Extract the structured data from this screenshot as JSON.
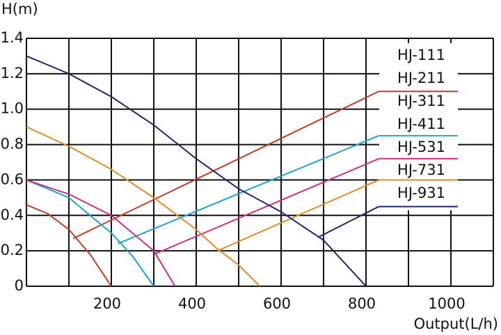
{
  "chart_data": {
    "type": "line",
    "y_label": "H(m)",
    "x_label": "Output(L/h)",
    "xlim": [
      0,
      1100
    ],
    "ylim": [
      0,
      1.4
    ],
    "xticks": [
      200,
      400,
      600,
      800,
      1000
    ],
    "xminor": [
      100,
      300,
      500,
      700,
      900
    ],
    "yticks": [
      0,
      0.2,
      0.4,
      0.6,
      0.8,
      {
        "value": 1,
        "label": "1.0"
      },
      1.2,
      1.4
    ],
    "grid": true,
    "series": [
      {
        "name": "HJ-111"
      },
      {
        "name": "HJ-211",
        "color": "#c8371f",
        "x": [
          0,
          50,
          100,
          150,
          200
        ],
        "values": [
          0.46,
          0.41,
          0.32,
          0.18,
          0
        ],
        "leader_x": [
          110,
          830
        ],
        "leader_y": [
          0.27,
          1.1
        ]
      },
      {
        "name": "HJ-311"
      },
      {
        "name": "HJ-411",
        "color": "#1aa3d6",
        "x": [
          0,
          100,
          200,
          250,
          300
        ],
        "values": [
          0.6,
          0.5,
          0.3,
          0.17,
          0
        ],
        "leader_x": [
          215,
          830
        ],
        "leader_y": [
          0.24,
          0.85
        ]
      },
      {
        "name": "HJ-531",
        "color": "#d62a7e",
        "x": [
          0,
          100,
          200,
          300,
          350
        ],
        "values": [
          0.6,
          0.52,
          0.4,
          0.2,
          0
        ],
        "leader_x": [
          300,
          830
        ],
        "leader_y": [
          0.18,
          0.72
        ]
      },
      {
        "name": "HJ-731",
        "color": "#e58a1f",
        "x": [
          0,
          100,
          200,
          300,
          400,
          450,
          500,
          550
        ],
        "values": [
          0.9,
          0.79,
          0.66,
          0.5,
          0.32,
          0.21,
          0.12,
          0
        ],
        "leader_x": [
          450,
          830
        ],
        "leader_y": [
          0.2,
          0.6
        ]
      },
      {
        "name": "HJ-931",
        "color": "#23236e",
        "x": [
          0,
          100,
          200,
          300,
          400,
          500,
          600,
          700,
          800
        ],
        "values": [
          1.3,
          1.2,
          1.07,
          0.91,
          0.72,
          0.55,
          0.42,
          0.26,
          0
        ],
        "leader_x": [
          690,
          830
        ],
        "leader_y": [
          0.28,
          0.45
        ]
      }
    ]
  }
}
